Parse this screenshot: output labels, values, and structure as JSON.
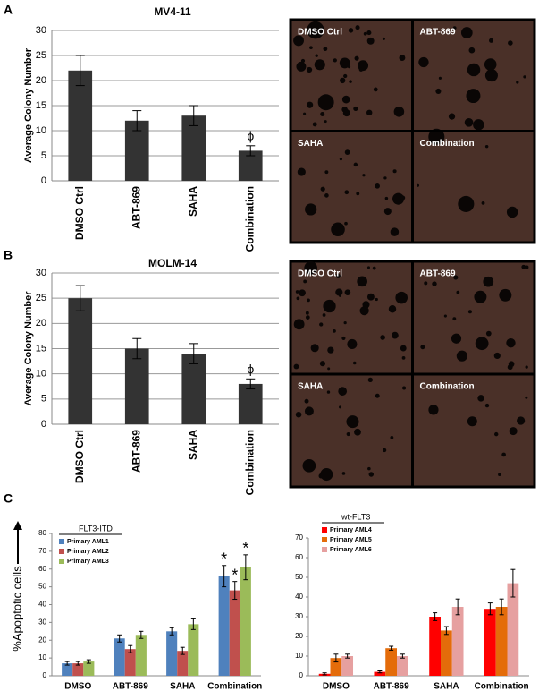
{
  "panel_labels": [
    "A",
    "B",
    "C"
  ],
  "micrographs": [
    [
      "DMSO Ctrl",
      "ABT-869",
      "SAHA",
      "Combination"
    ],
    [
      "DMSO Ctrl",
      "ABT-869",
      "SAHA",
      "Combination"
    ]
  ],
  "chart_data": [
    {
      "type": "bar",
      "title": "MV4-11",
      "ylabel": "Average Colony Number",
      "categories": [
        "DMSO Ctrl",
        "ABT-869",
        "SAHA",
        "Combination"
      ],
      "values": [
        22,
        12,
        13,
        6
      ],
      "errors": [
        3,
        2,
        2,
        1
      ],
      "value_markers": [
        null,
        null,
        null,
        "ϕ"
      ],
      "color": "#333333",
      "ylim": [
        0,
        30
      ],
      "yticks": [
        0,
        5,
        10,
        15,
        20,
        25,
        30
      ],
      "grid": true
    },
    {
      "type": "bar",
      "title": "MOLM-14",
      "ylabel": "Average Colony Number",
      "categories": [
        "DMSO Ctrl",
        "ABT-869",
        "SAHA",
        "Combination"
      ],
      "values": [
        25,
        15,
        14,
        8
      ],
      "errors": [
        2.5,
        2,
        2,
        1
      ],
      "value_markers": [
        null,
        null,
        null,
        "ϕ"
      ],
      "color": "#333333",
      "ylim": [
        0,
        30
      ],
      "yticks": [
        0,
        5,
        10,
        15,
        20,
        25,
        30
      ],
      "grid": true
    },
    {
      "type": "grouped-bar",
      "ylabel": "%Apoptotic cells",
      "legend_title": "FLT3-ITD",
      "categories": [
        "DMSO",
        "ABT-869",
        "SAHA",
        "Combination"
      ],
      "series": [
        {
          "name": "Primary AML1",
          "color": "#4f81bd",
          "values": [
            7,
            21,
            25,
            56
          ],
          "errors": [
            1,
            2,
            2,
            6
          ],
          "value_markers": [
            null,
            null,
            null,
            "*"
          ]
        },
        {
          "name": "Primary AML2",
          "color": "#c0504d",
          "values": [
            7,
            15,
            14,
            48
          ],
          "errors": [
            1,
            2,
            2,
            5
          ],
          "value_markers": [
            null,
            null,
            null,
            "*"
          ]
        },
        {
          "name": "Primary AML3",
          "color": "#9bbb59",
          "values": [
            8,
            23,
            29,
            61
          ],
          "errors": [
            1,
            2,
            3,
            7
          ],
          "value_markers": [
            null,
            null,
            null,
            "*"
          ]
        }
      ],
      "ylim": [
        0,
        80
      ],
      "yticks": [
        0,
        10,
        20,
        30,
        40,
        50,
        60,
        70,
        80
      ],
      "grid": false
    },
    {
      "type": "grouped-bar",
      "legend_title": "wt-FLT3",
      "categories": [
        "DMSO",
        "ABT-869",
        "SAHA",
        "Combination"
      ],
      "series": [
        {
          "name": "Primary AML4",
          "color": "#ff0000",
          "values": [
            1,
            2,
            30,
            34
          ],
          "errors": [
            0.5,
            0.5,
            2,
            3
          ]
        },
        {
          "name": "Primary AML5",
          "color": "#e46c0a",
          "values": [
            9,
            14,
            23,
            35
          ],
          "errors": [
            2,
            1,
            2,
            4
          ]
        },
        {
          "name": "Primary AML6",
          "color": "#e6a0a0",
          "values": [
            10,
            10,
            35,
            47
          ],
          "errors": [
            1,
            1,
            4,
            7
          ]
        }
      ],
      "ylim": [
        0,
        70
      ],
      "yticks": [
        0,
        10,
        20,
        30,
        40,
        50,
        60,
        70
      ],
      "grid": false
    }
  ]
}
